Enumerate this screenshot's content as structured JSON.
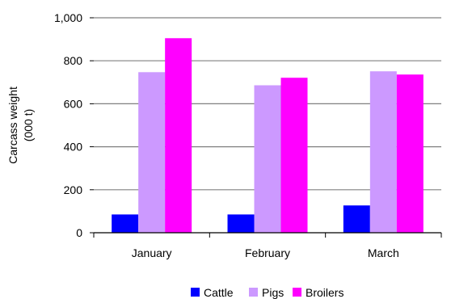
{
  "chart_data": {
    "type": "bar",
    "categories": [
      "January",
      "February",
      "March"
    ],
    "series": [
      {
        "name": "Cattle",
        "color": "#0000ff",
        "values": [
          85,
          85,
          127
        ]
      },
      {
        "name": "Pigs",
        "color": "#cc99ff",
        "values": [
          747,
          686,
          751
        ]
      },
      {
        "name": "Broilers",
        "color": "#ff00ff",
        "values": [
          905,
          721,
          736
        ]
      }
    ],
    "ylabel_line1": "Carcass weight",
    "ylabel_line2": "(000 t)",
    "xlabel": "",
    "title": "",
    "ylim": [
      0,
      1000
    ],
    "yticks": [
      0,
      200,
      400,
      600,
      800,
      1000
    ],
    "ytick_labels": [
      "0",
      "200",
      "400",
      "600",
      "800",
      "1,000"
    ],
    "grid": true,
    "legend_position": "bottom-center"
  }
}
